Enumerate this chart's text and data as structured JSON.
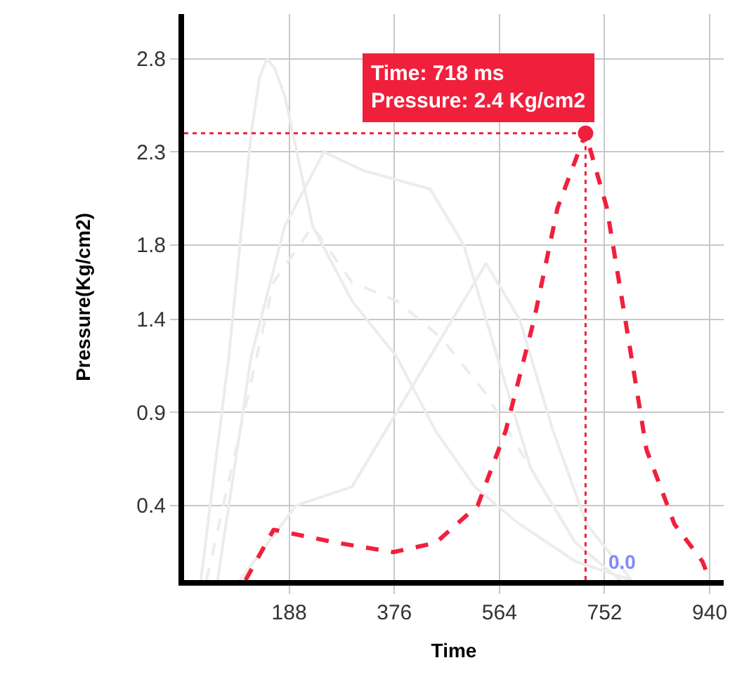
{
  "chart_data": {
    "type": "line",
    "xlabel": "Time",
    "ylabel": "Pressure(Kg/cm2)",
    "xlim": [
      0,
      965
    ],
    "xticks": [
      188,
      376,
      564,
      752,
      940
    ],
    "ylim": [
      0,
      3.04
    ],
    "yticks": [
      0.4,
      0.9,
      1.4,
      1.8,
      2.3,
      2.8
    ],
    "grid": true,
    "series": [
      {
        "color": "#ececec",
        "line_style": "solid",
        "x": [
          30,
          80,
          120,
          135,
          148,
          162,
          180,
          230,
          300,
          380,
          450,
          520,
          600,
          700,
          800
        ],
        "values": [
          0,
          1.2,
          2.4,
          2.7,
          2.8,
          2.75,
          2.6,
          1.9,
          1.5,
          1.2,
          0.8,
          0.5,
          0.3,
          0.1,
          0
        ]
      },
      {
        "color": "#ececec",
        "line_style": "solid",
        "x": [
          60,
          120,
          180,
          250,
          320,
          380,
          440,
          500,
          560,
          620,
          700,
          780
        ],
        "values": [
          0,
          1.2,
          1.9,
          2.3,
          2.2,
          2.15,
          2.1,
          1.8,
          1.2,
          0.6,
          0.2,
          0
        ]
      },
      {
        "color": "#ececec",
        "line_style": "dashed",
        "x": [
          40,
          100,
          160,
          230,
          300,
          380,
          460,
          540,
          620,
          700,
          780
        ],
        "values": [
          0,
          0.8,
          1.6,
          1.9,
          1.6,
          1.5,
          1.3,
          1.0,
          0.6,
          0.2,
          0
        ]
      },
      {
        "color": "#ececec",
        "line_style": "solid",
        "x": [
          100,
          200,
          300,
          380,
          460,
          540,
          600,
          660,
          720,
          800
        ],
        "values": [
          0,
          0.4,
          0.5,
          0.9,
          1.3,
          1.7,
          1.4,
          0.8,
          0.3,
          0
        ]
      },
      {
        "color": "#f0203c",
        "line_style": "dashed",
        "x": [
          110,
          160,
          274,
          374,
          450,
          525,
          575,
          626,
          668,
          718,
          756,
          789,
          827,
          877,
          927,
          940
        ],
        "values": [
          0,
          0.27,
          0.2,
          0.15,
          0.2,
          0.4,
          0.8,
          1.4,
          2.0,
          2.4,
          2.0,
          1.4,
          0.7,
          0.3,
          0.1,
          0
        ]
      }
    ],
    "annotations": [
      {
        "text": "Time: 718 ms\nPressure: 2.4 Kg/cm2",
        "x": 718,
        "y": 2.4
      },
      "0.0"
    ]
  }
}
